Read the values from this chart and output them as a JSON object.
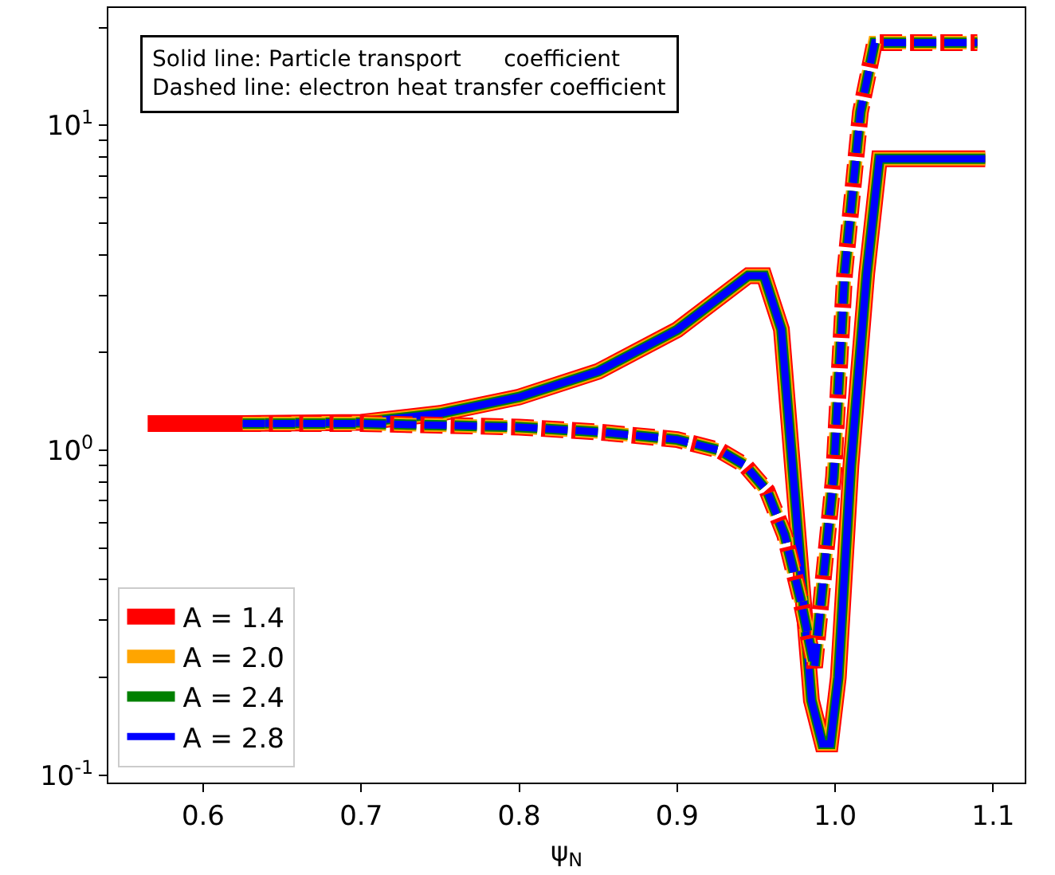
{
  "chart_data": {
    "type": "line",
    "xlabel": "ψ$_{N}$",
    "annotations": [
      "Solid line: Particle transport      coefficient",
      "Dashed line: electron heat transfer coefficient"
    ],
    "xlim": [
      0.54,
      1.12
    ],
    "xticks": [
      0.6,
      0.7,
      0.8,
      0.9,
      {
        "value": 1.0,
        "label": "1.0"
      },
      1.1
    ],
    "ylim": [
      0.095,
      23
    ],
    "log": true,
    "yticks": [
      {
        "value": 0.1,
        "label": "10$^{-1}$"
      },
      {
        "value": 0.2,
        "label": null
      },
      {
        "value": 0.3,
        "label": null
      },
      {
        "value": 0.4,
        "label": null
      },
      {
        "value": 0.5,
        "label": null
      },
      {
        "value": 0.6,
        "label": null
      },
      {
        "value": 0.7,
        "label": null
      },
      {
        "value": 0.8,
        "label": null
      },
      {
        "value": 0.9,
        "label": null
      },
      {
        "value": 1,
        "label": "10$^{0}$"
      },
      {
        "value": 2,
        "label": null
      },
      {
        "value": 3,
        "label": null
      },
      {
        "value": 4,
        "label": null
      },
      {
        "value": 5,
        "label": null
      },
      {
        "value": 6,
        "label": null
      },
      {
        "value": 7,
        "label": null
      },
      {
        "value": 8,
        "label": null
      },
      {
        "value": 9,
        "label": null
      },
      {
        "value": 10,
        "label": "10$^{1}$"
      },
      {
        "value": 20,
        "label": null
      }
    ],
    "grid": false,
    "legend": "bottom left",
    "marker": "none",
    "series": [
      {
        "name": "A = 1.4",
        "color": "#ff0000",
        "line_style": "solid",
        "x": [
          0.565,
          0.625,
          0.7,
          0.75,
          0.8,
          0.85,
          0.9,
          0.945,
          0.955,
          0.966,
          0.985,
          0.992,
          0.997,
          1.002,
          1.01,
          1.02,
          1.028,
          1.095
        ],
        "values": [
          1.21,
          1.21,
          1.22,
          1.3,
          1.46,
          1.75,
          2.35,
          3.45,
          3.45,
          2.36,
          0.17,
          0.125,
          0.125,
          0.2,
          0.9,
          3.5,
          7.9,
          7.9
        ]
      },
      {
        "name": "A = 2.0",
        "color": "#ffa500",
        "line_style": "solid",
        "x": [
          0.625,
          0.7,
          0.75,
          0.8,
          0.85,
          0.9,
          0.945,
          0.955,
          0.966,
          0.985,
          0.992,
          0.997,
          1.002,
          1.01,
          1.02,
          1.028,
          1.095
        ],
        "values": [
          1.21,
          1.22,
          1.3,
          1.46,
          1.75,
          2.35,
          3.45,
          3.45,
          2.36,
          0.17,
          0.125,
          0.125,
          0.2,
          0.9,
          3.5,
          7.9,
          7.9
        ]
      },
      {
        "name": "A = 2.4",
        "color": "#008000",
        "line_style": "solid",
        "x": [
          0.625,
          0.7,
          0.75,
          0.8,
          0.85,
          0.9,
          0.945,
          0.955,
          0.966,
          0.985,
          0.992,
          0.997,
          1.002,
          1.01,
          1.02,
          1.028,
          1.095
        ],
        "values": [
          1.21,
          1.22,
          1.3,
          1.46,
          1.75,
          2.35,
          3.45,
          3.45,
          2.36,
          0.17,
          0.125,
          0.125,
          0.2,
          0.9,
          3.5,
          7.9,
          7.9
        ]
      },
      {
        "name": "A = 2.8",
        "color": "#0000ff",
        "line_style": "solid",
        "x": [
          0.625,
          0.7,
          0.75,
          0.8,
          0.85,
          0.9,
          0.945,
          0.955,
          0.966,
          0.985,
          0.992,
          0.997,
          1.002,
          1.01,
          1.02,
          1.028,
          1.095
        ],
        "values": [
          1.21,
          1.22,
          1.3,
          1.46,
          1.75,
          2.35,
          3.45,
          3.45,
          2.36,
          0.17,
          0.125,
          0.125,
          0.2,
          0.9,
          3.5,
          7.9,
          7.9
        ]
      },
      {
        "color": "#ff0000",
        "line_style": "dashed",
        "x": [
          0.565,
          0.625,
          0.7,
          0.8,
          0.85,
          0.9,
          0.927,
          0.943,
          0.957,
          0.968,
          0.978,
          0.987,
          0.991,
          0.999,
          1.006,
          1.016,
          1.025,
          1.09
        ],
        "values": [
          1.21,
          1.21,
          1.21,
          1.18,
          1.14,
          1.08,
          1.0,
          0.9,
          0.75,
          0.55,
          0.35,
          0.215,
          0.34,
          0.83,
          3.5,
          11,
          18,
          18
        ]
      },
      {
        "color": "#ffa500",
        "line_style": "dashed",
        "x": [
          0.625,
          0.7,
          0.8,
          0.85,
          0.9,
          0.927,
          0.943,
          0.957,
          0.968,
          0.978,
          0.987,
          0.991,
          0.999,
          1.006,
          1.016,
          1.025,
          1.09
        ],
        "values": [
          1.21,
          1.21,
          1.18,
          1.14,
          1.08,
          1.0,
          0.9,
          0.75,
          0.55,
          0.35,
          0.215,
          0.34,
          0.83,
          3.5,
          11,
          18,
          18
        ]
      },
      {
        "color": "#008000",
        "line_style": "dashed",
        "x": [
          0.625,
          0.7,
          0.8,
          0.85,
          0.9,
          0.927,
          0.943,
          0.957,
          0.968,
          0.978,
          0.987,
          0.991,
          0.999,
          1.006,
          1.016,
          1.025,
          1.09
        ],
        "values": [
          1.21,
          1.21,
          1.18,
          1.14,
          1.08,
          1.0,
          0.9,
          0.75,
          0.55,
          0.35,
          0.215,
          0.34,
          0.83,
          3.5,
          11,
          18,
          18
        ]
      },
      {
        "color": "#0000ff",
        "line_style": "dashed",
        "x": [
          0.625,
          0.7,
          0.8,
          0.85,
          0.9,
          0.927,
          0.943,
          0.957,
          0.968,
          0.978,
          0.987,
          0.991,
          0.999,
          1.006,
          1.016,
          1.025,
          1.09
        ],
        "values": [
          1.21,
          1.21,
          1.18,
          1.14,
          1.08,
          1.0,
          0.9,
          0.75,
          0.55,
          0.35,
          0.215,
          0.34,
          0.83,
          3.5,
          11,
          18,
          18
        ]
      }
    ]
  }
}
